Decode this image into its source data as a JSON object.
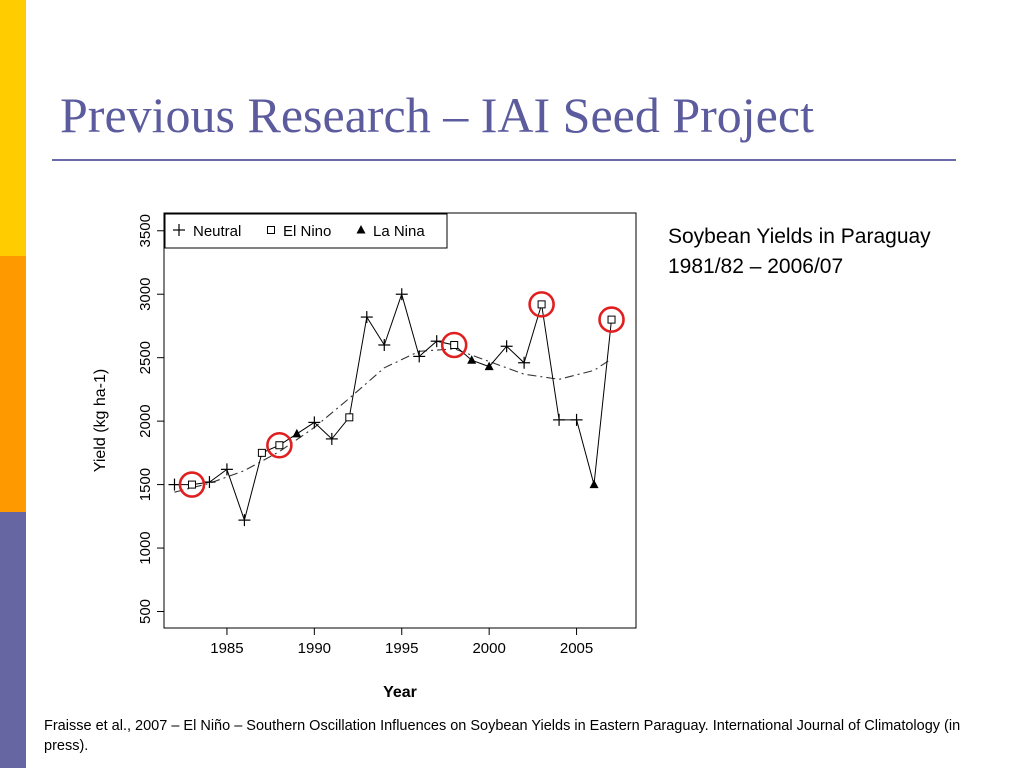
{
  "slide": {
    "title": "Previous Research – IAI Seed Project",
    "caption_line1": "Soybean Yields in Paraguay",
    "caption_line2": "1981/82 – 2006/07",
    "citation": "Fraisse et al., 2007 – El Niño – Southern Oscillation Influences on Soybean Yields in Eastern Paraguay. International Journal of Climatology (in press).",
    "colors": {
      "title": "#5b5b9e",
      "rule": "#6a6aa8",
      "bar_top": "#ffcc00",
      "bar_mid": "#ff9900",
      "bar_bottom": "#6666a3",
      "highlight_circle": "#e02020"
    }
  },
  "chart_data": {
    "type": "line",
    "xlabel": "Year",
    "ylabel": "Yield (kg ha-1)",
    "xlim": [
      1981.4,
      2008.4
    ],
    "ylim": [
      370,
      3640
    ],
    "x_ticks": [
      1985,
      1990,
      1995,
      2000,
      2005
    ],
    "y_ticks": [
      500,
      1000,
      1500,
      2000,
      2500,
      3000,
      3500
    ],
    "legend": {
      "position": "top-left",
      "entries": [
        {
          "label": "Neutral",
          "marker": "plus"
        },
        {
          "label": "El Nino",
          "marker": "square"
        },
        {
          "label": "La Nina",
          "marker": "triangle"
        }
      ]
    },
    "points": [
      {
        "year": 1982,
        "yield": 1500,
        "phase": "Neutral"
      },
      {
        "year": 1983,
        "yield": 1500,
        "phase": "El Nino"
      },
      {
        "year": 1984,
        "yield": 1520,
        "phase": "Neutral"
      },
      {
        "year": 1985,
        "yield": 1620,
        "phase": "Neutral"
      },
      {
        "year": 1986,
        "yield": 1220,
        "phase": "Neutral"
      },
      {
        "year": 1987,
        "yield": 1750,
        "phase": "El Nino"
      },
      {
        "year": 1988,
        "yield": 1810,
        "phase": "El Nino"
      },
      {
        "year": 1989,
        "yield": 1900,
        "phase": "La Nina"
      },
      {
        "year": 1990,
        "yield": 1990,
        "phase": "Neutral"
      },
      {
        "year": 1991,
        "yield": 1860,
        "phase": "Neutral"
      },
      {
        "year": 1992,
        "yield": 2030,
        "phase": "El Nino"
      },
      {
        "year": 1993,
        "yield": 2820,
        "phase": "Neutral"
      },
      {
        "year": 1994,
        "yield": 2600,
        "phase": "Neutral"
      },
      {
        "year": 1995,
        "yield": 3000,
        "phase": "Neutral"
      },
      {
        "year": 1996,
        "yield": 2510,
        "phase": "Neutral"
      },
      {
        "year": 1997,
        "yield": 2630,
        "phase": "Neutral"
      },
      {
        "year": 1998,
        "yield": 2600,
        "phase": "El Nino"
      },
      {
        "year": 1999,
        "yield": 2480,
        "phase": "La Nina"
      },
      {
        "year": 2000,
        "yield": 2430,
        "phase": "La Nina"
      },
      {
        "year": 2001,
        "yield": 2590,
        "phase": "Neutral"
      },
      {
        "year": 2002,
        "yield": 2460,
        "phase": "Neutral"
      },
      {
        "year": 2003,
        "yield": 2920,
        "phase": "El Nino"
      },
      {
        "year": 2004,
        "yield": 2010,
        "phase": "Neutral"
      },
      {
        "year": 2005,
        "yield": 2010,
        "phase": "Neutral"
      },
      {
        "year": 2006,
        "yield": 1500,
        "phase": "La Nina"
      },
      {
        "year": 2007,
        "yield": 2800,
        "phase": "El Nino"
      }
    ],
    "trend": {
      "style": "dashed",
      "x": [
        1982,
        1984,
        1986,
        1988,
        1990,
        1992,
        1994,
        1996,
        1998,
        2000,
        2002,
        2004,
        2006,
        2007
      ],
      "y": [
        1440,
        1510,
        1610,
        1760,
        1950,
        2180,
        2420,
        2550,
        2570,
        2470,
        2370,
        2330,
        2400,
        2490
      ]
    },
    "highlighted_years": [
      1983,
      1988,
      1998,
      2003,
      2007
    ]
  }
}
